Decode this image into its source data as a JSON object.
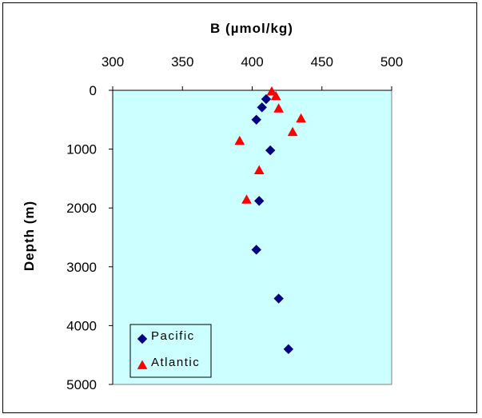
{
  "chart_data": {
    "type": "scatter",
    "title": "",
    "xlabel": "B (µmol/kg)",
    "ylabel": "Depth (m)",
    "xlim": [
      300,
      500
    ],
    "ylim": [
      0,
      5000
    ],
    "y_inverted": true,
    "x_axis_position": "top",
    "x_ticks": [
      "300",
      "350",
      "400",
      "450",
      "500"
    ],
    "y_ticks": [
      "0",
      "1000",
      "2000",
      "3000",
      "4000",
      "5000"
    ],
    "plot_background": "#ccffff",
    "grid": false,
    "legend_position": "bottom-left",
    "series": [
      {
        "name": "Pacific",
        "marker": "diamond",
        "color": "#000080",
        "points": [
          {
            "x": 410,
            "y": 150
          },
          {
            "x": 407,
            "y": 290
          },
          {
            "x": 403,
            "y": 500
          },
          {
            "x": 413,
            "y": 1020
          },
          {
            "x": 405,
            "y": 1880
          },
          {
            "x": 403,
            "y": 2710
          },
          {
            "x": 419,
            "y": 3540
          },
          {
            "x": 426,
            "y": 4400
          }
        ]
      },
      {
        "name": "Atlantic",
        "marker": "triangle",
        "color": "#ff0000",
        "points": [
          {
            "x": 414,
            "y": 20
          },
          {
            "x": 417,
            "y": 100
          },
          {
            "x": 419,
            "y": 310
          },
          {
            "x": 435,
            "y": 480
          },
          {
            "x": 429,
            "y": 710
          },
          {
            "x": 391,
            "y": 860
          },
          {
            "x": 405,
            "y": 1360
          },
          {
            "x": 396,
            "y": 1860
          }
        ]
      }
    ]
  }
}
